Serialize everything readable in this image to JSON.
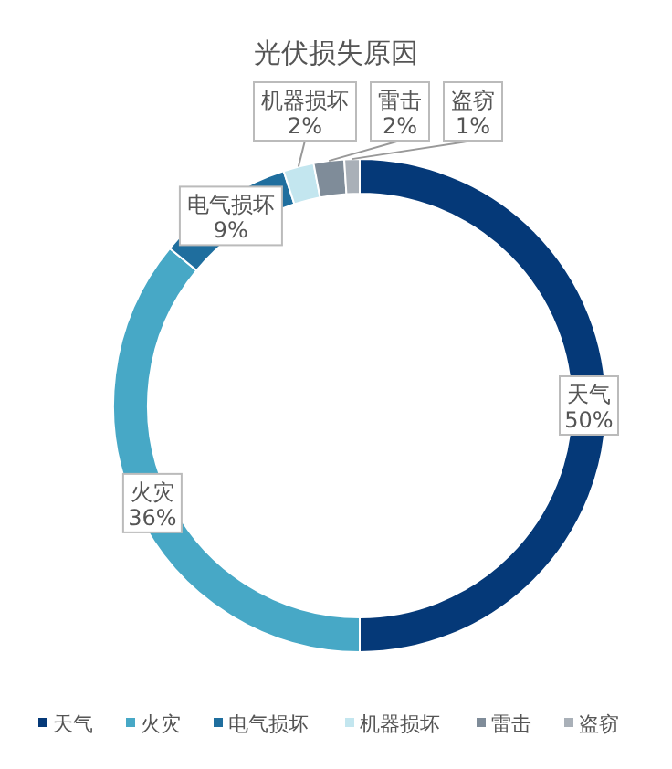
{
  "chart_data": {
    "type": "donut",
    "title": "光伏损失原因",
    "categories": [
      "天气",
      "火灾",
      "电气损坏",
      "机器损坏",
      "雷击",
      "盗窃"
    ],
    "values": [
      50,
      36,
      9,
      2,
      2,
      1
    ],
    "colors": [
      "#053978",
      "#47a8c6",
      "#1f6e9e",
      "#c3e6ef",
      "#7f8c99",
      "#a9b0b8"
    ],
    "value_labels": [
      "50%",
      "36%",
      "9%",
      "2%",
      "2%",
      "1%"
    ],
    "legend": "bottom"
  }
}
